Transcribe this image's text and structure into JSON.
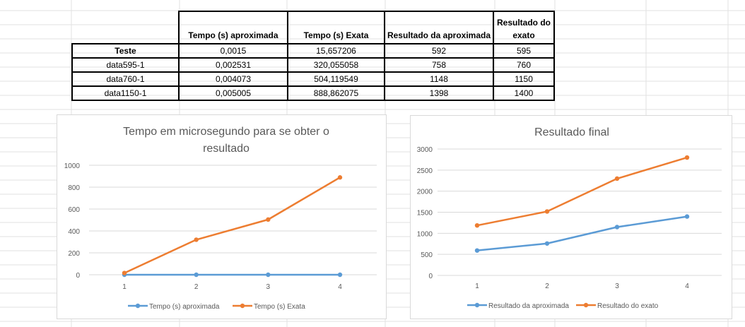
{
  "table": {
    "headers": [
      "",
      "Tempo (s) aproximada",
      "Tempo (s) Exata",
      "Resultado da aproximada",
      "Resultado do exato"
    ],
    "rows": [
      [
        "Teste",
        "0,0015",
        "15,657206",
        "592",
        "595"
      ],
      [
        "data595-1",
        "0,002531",
        "320,055058",
        "758",
        "760"
      ],
      [
        "data760-1",
        "0,004073",
        "504,119549",
        "1148",
        "1150"
      ],
      [
        "data1150-1",
        "0,005005",
        "888,862075",
        "1398",
        "1400"
      ]
    ]
  },
  "chart_data": [
    {
      "type": "line",
      "title": "Tempo em microsegundo para se obter o resultado",
      "categories": [
        "1",
        "2",
        "3",
        "4"
      ],
      "ylim": [
        0,
        1000
      ],
      "yticks": [
        0,
        200,
        400,
        600,
        800,
        1000
      ],
      "grid": true,
      "legend": "bottom",
      "series": [
        {
          "name": "Tempo (s) aproximada",
          "values": [
            0.0015,
            0.002531,
            0.004073,
            0.005005
          ],
          "color": "#5b9bd5"
        },
        {
          "name": "Tempo (s) Exata",
          "values": [
            15.657206,
            320.055058,
            504.119549,
            888.862075
          ],
          "color": "#ed7d31"
        }
      ]
    },
    {
      "type": "line",
      "stacked": true,
      "title": "Resultado final",
      "categories": [
        "1",
        "2",
        "3",
        "4"
      ],
      "ylim": [
        0,
        3000
      ],
      "yticks": [
        0,
        500,
        1000,
        1500,
        2000,
        2500,
        3000
      ],
      "grid": true,
      "legend": "bottom",
      "series": [
        {
          "name": "Resultado da aproximada",
          "values": [
            592,
            758,
            1148,
            1398
          ],
          "color": "#5b9bd5"
        },
        {
          "name": "Resultado do exato",
          "values": [
            595,
            760,
            1150,
            1400
          ],
          "color": "#ed7d31"
        }
      ]
    }
  ]
}
